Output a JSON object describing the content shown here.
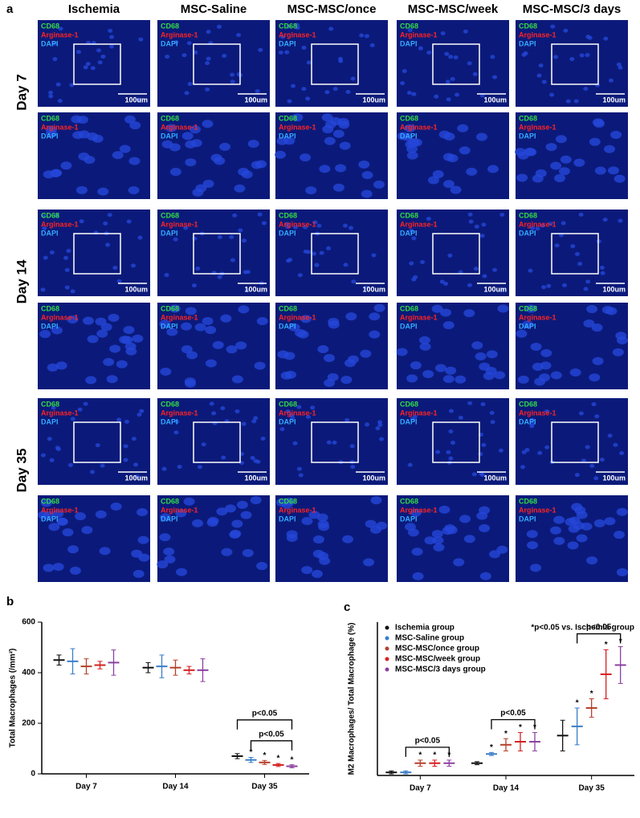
{
  "panel_a": {
    "label": "a",
    "columns": [
      "Ischemia",
      "MSC-Saline",
      "MSC-MSC/once",
      "MSC-MSC/week",
      "MSC-MSC/3 days"
    ],
    "rows": [
      "Day 7",
      "Day 14",
      "Day 35"
    ],
    "stains": [
      "CD68",
      "Arginase-1",
      "DAPI"
    ],
    "scale_bar": "100um"
  },
  "chart_data": [
    {
      "type": "dot",
      "label": "b",
      "ylabel": "Total Macrophages (/mm²)",
      "categories": [
        "Day 7",
        "Day 14",
        "Day 35"
      ],
      "ylim": [
        0,
        600
      ],
      "yticks": [
        0,
        200,
        400,
        600
      ],
      "star": "*",
      "series": [
        {
          "color": "#111111",
          "values": [
            450,
            420,
            70
          ],
          "errors": [
            20,
            20,
            10
          ],
          "stars": [
            false,
            false,
            false
          ]
        },
        {
          "color": "#3a7dc9",
          "values": [
            445,
            425,
            55
          ],
          "errors": [
            50,
            45,
            10
          ],
          "stars": [
            false,
            false,
            true
          ]
        },
        {
          "color": "#b5402a",
          "values": [
            425,
            420,
            45
          ],
          "errors": [
            30,
            30,
            8
          ],
          "stars": [
            false,
            false,
            true
          ]
        },
        {
          "color": "#d62020",
          "values": [
            430,
            410,
            35
          ],
          "errors": [
            15,
            15,
            6
          ],
          "stars": [
            false,
            false,
            true
          ]
        },
        {
          "color": "#8b3fa0",
          "values": [
            440,
            410,
            30
          ],
          "errors": [
            50,
            45,
            6
          ],
          "stars": [
            false,
            false,
            true
          ]
        }
      ],
      "brackets": [
        {
          "label": "p<0.05",
          "category": "Day 35"
        },
        {
          "label": "p<0.05",
          "category": "Day 35"
        }
      ]
    },
    {
      "type": "dot",
      "label": "c",
      "ylabel": "M2 Macrophages/ Total Macrophage (%)",
      "categories": [
        "Day 7",
        "Day 14",
        "Day 35"
      ],
      "ylim": [
        0,
        50
      ],
      "star": "*",
      "annotation": "*p<0.05 vs. Ischemia group",
      "series": [
        {
          "name": "Ischemia group",
          "color": "#111111",
          "values": [
            1,
            4,
            13
          ],
          "errors": [
            0.5,
            0.5,
            5
          ],
          "stars": [
            false,
            false,
            false
          ]
        },
        {
          "name": "MSC-Saline group",
          "color": "#3a7dc9",
          "values": [
            1,
            7,
            16
          ],
          "errors": [
            0.5,
            0.5,
            6
          ],
          "stars": [
            false,
            true,
            true
          ]
        },
        {
          "name": "MSC-MSC/once group",
          "color": "#b5402a",
          "values": [
            4,
            10,
            22
          ],
          "errors": [
            1,
            2,
            3
          ],
          "stars": [
            true,
            true,
            true
          ]
        },
        {
          "name": "MSC-MSC/week group",
          "color": "#d62020",
          "values": [
            4,
            11,
            33
          ],
          "errors": [
            1,
            3,
            8
          ],
          "stars": [
            true,
            true,
            true
          ]
        },
        {
          "name": "MSC-MSC/3 days group",
          "color": "#8b3fa0",
          "values": [
            4,
            11,
            36
          ],
          "errors": [
            1,
            3,
            6
          ],
          "stars": [
            true,
            true,
            true
          ]
        }
      ],
      "brackets": [
        {
          "label": "p<0.05",
          "category": "Day 7"
        },
        {
          "label": "p<0.05",
          "category": "Day 14"
        },
        {
          "label": "p<0.05",
          "category": "Day 35"
        }
      ]
    }
  ]
}
